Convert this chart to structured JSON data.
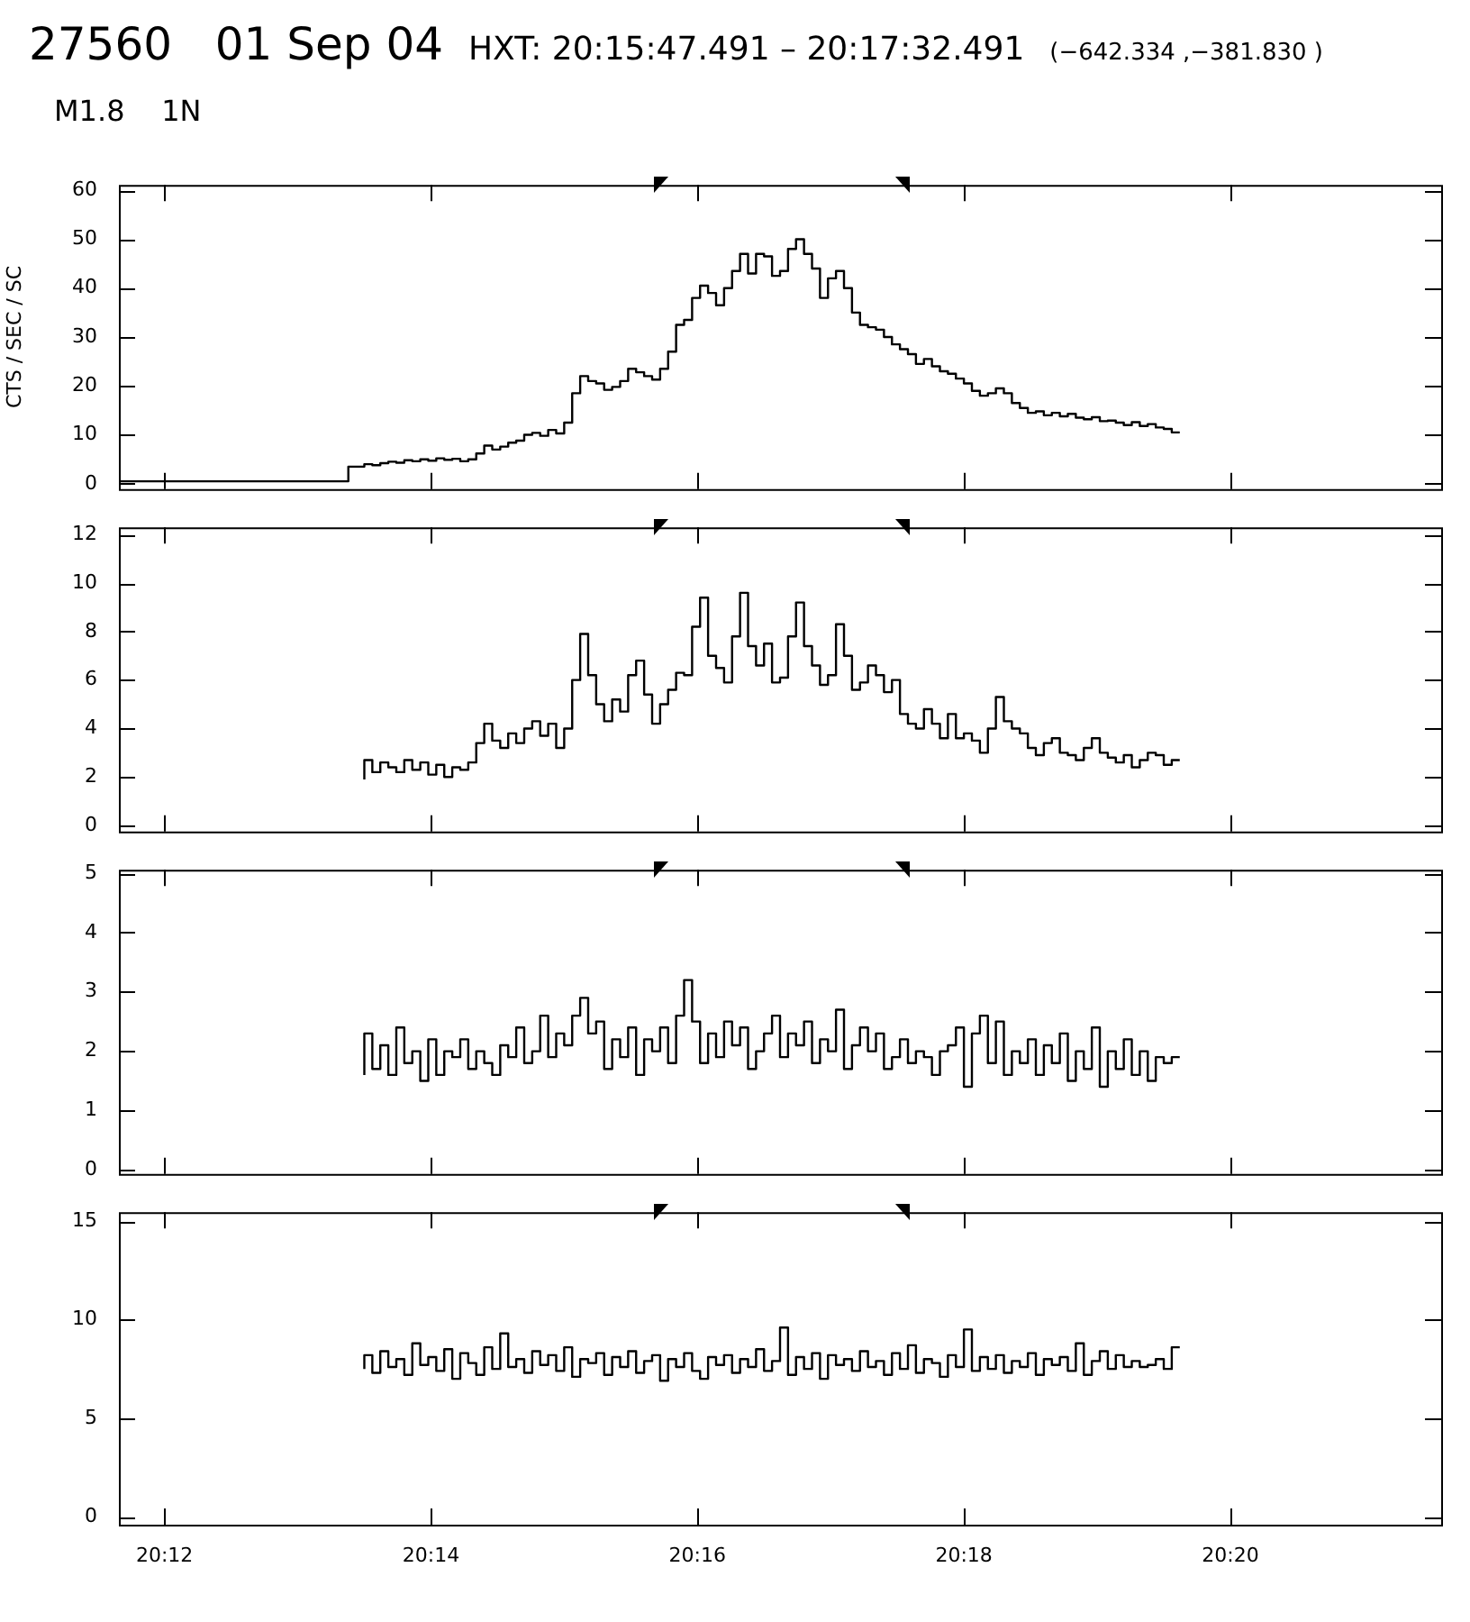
{
  "chart_data": [
    {
      "type": "step",
      "title": "27560   01 Sep 04",
      "subtitle": "M1.8    1N",
      "annotations": [
        "HXT: 20:15:47.491 – 20:17:32.491",
        "(−642.334 ,−381.830 )"
      ],
      "ylabel": "CTS / SEC / SC",
      "tick_labels": "y",
      "xlim": [
        20.1943,
        20.3597
      ],
      "xticks": [
        {
          "value": 20.2,
          "label": null
        },
        {
          "value": 20.233333,
          "label": null
        },
        {
          "value": 20.266667,
          "label": null
        },
        {
          "value": 20.3,
          "label": null
        },
        {
          "value": 20.333333,
          "label": null
        }
      ],
      "ylim": [
        -1.1,
        61.1
      ],
      "yticks": [
        0,
        10,
        20,
        30,
        40,
        50,
        60
      ],
      "series": [
        {
          "color": "#000000",
          "x": [
            20.1943,
            20.223,
            20.225,
            20.226,
            20.227,
            20.228,
            20.229,
            20.23,
            20.231,
            20.232,
            20.233,
            20.234,
            20.235,
            20.236,
            20.237,
            20.238,
            20.239,
            20.24,
            20.241,
            20.242,
            20.243,
            20.244,
            20.245,
            20.246,
            20.247,
            20.248,
            20.249,
            20.25,
            20.251,
            20.252,
            20.253,
            20.254,
            20.255,
            20.256,
            20.257,
            20.258,
            20.259,
            20.26,
            20.261,
            20.262,
            20.263,
            20.264,
            20.265,
            20.266,
            20.267,
            20.268,
            20.269,
            20.27,
            20.271,
            20.272,
            20.273,
            20.274,
            20.275,
            20.276,
            20.277,
            20.278,
            20.279,
            20.28,
            20.281,
            20.282,
            20.283,
            20.284,
            20.285,
            20.286,
            20.287,
            20.288,
            20.289,
            20.29,
            20.291,
            20.292,
            20.293,
            20.294,
            20.295,
            20.296,
            20.297,
            20.298,
            20.299,
            20.3,
            20.301,
            20.302,
            20.303,
            20.304,
            20.305,
            20.306,
            20.307,
            20.308,
            20.309,
            20.31,
            20.311,
            20.312,
            20.313,
            20.314,
            20.315,
            20.316,
            20.317,
            20.318,
            20.319,
            20.32,
            20.321,
            20.322,
            20.323,
            20.324,
            20.325,
            20.326,
            20.327
          ],
          "values": [
            0.5,
            0.5,
            3.5,
            4.0,
            3.8,
            4.2,
            4.5,
            4.3,
            4.8,
            4.6,
            5.0,
            4.7,
            5.2,
            4.9,
            5.1,
            4.6,
            5.0,
            6.2,
            7.8,
            7.0,
            7.6,
            8.4,
            8.8,
            10.0,
            10.4,
            9.8,
            11.0,
            10.3,
            12.5,
            18.5,
            22.0,
            21.0,
            20.5,
            19.2,
            19.8,
            21.0,
            23.5,
            22.8,
            22.0,
            21.3,
            23.5,
            27.0,
            32.5,
            33.5,
            38.0,
            40.5,
            39.0,
            36.5,
            40.0,
            43.5,
            47.0,
            43.0,
            47.0,
            46.5,
            42.5,
            43.5,
            48.0,
            50.0,
            47.0,
            44.0,
            38.0,
            42.0,
            43.5,
            40.0,
            35.0,
            32.5,
            32.0,
            31.5,
            30.0,
            28.5,
            27.5,
            26.5,
            24.5,
            25.5,
            24.0,
            23.0,
            22.5,
            21.5,
            20.5,
            19.0,
            18.0,
            18.5,
            19.5,
            18.5,
            16.5,
            15.5,
            14.5,
            14.8,
            14.0,
            14.5,
            13.8,
            14.3,
            13.5,
            13.2,
            13.6,
            12.8,
            12.9,
            12.5,
            12.0,
            12.6,
            11.8,
            12.2,
            11.5,
            11.2,
            10.5
          ]
        }
      ]
    },
    {
      "type": "step",
      "tick_labels": "y",
      "xlim": [
        20.1943,
        20.3597
      ],
      "xticks": [
        {
          "value": 20.2,
          "label": null
        },
        {
          "value": 20.233333,
          "label": null
        },
        {
          "value": 20.266667,
          "label": null
        },
        {
          "value": 20.3,
          "label": null
        },
        {
          "value": 20.333333,
          "label": null
        }
      ],
      "ylim": [
        -0.25,
        12.3
      ],
      "yticks": [
        0,
        2,
        4,
        6,
        8,
        10,
        12
      ],
      "color": "#000000",
      "x": [
        20.225,
        20.226,
        20.227,
        20.228,
        20.229,
        20.23,
        20.231,
        20.232,
        20.233,
        20.234,
        20.235,
        20.236,
        20.237,
        20.238,
        20.239,
        20.24,
        20.241,
        20.242,
        20.243,
        20.244,
        20.245,
        20.246,
        20.247,
        20.248,
        20.249,
        20.25,
        20.251,
        20.252,
        20.253,
        20.254,
        20.255,
        20.256,
        20.257,
        20.258,
        20.259,
        20.26,
        20.261,
        20.262,
        20.263,
        20.264,
        20.265,
        20.266,
        20.267,
        20.268,
        20.269,
        20.27,
        20.271,
        20.272,
        20.273,
        20.274,
        20.275,
        20.276,
        20.277,
        20.278,
        20.279,
        20.28,
        20.281,
        20.282,
        20.283,
        20.284,
        20.285,
        20.286,
        20.287,
        20.288,
        20.289,
        20.29,
        20.291,
        20.292,
        20.293,
        20.294,
        20.295,
        20.296,
        20.297,
        20.298,
        20.299,
        20.3,
        20.301,
        20.302,
        20.303,
        20.304,
        20.305,
        20.306,
        20.307,
        20.308,
        20.309,
        20.31,
        20.311,
        20.312,
        20.313,
        20.314,
        20.315,
        20.316,
        20.317,
        20.318,
        20.319,
        20.32,
        20.321,
        20.322,
        20.323,
        20.324,
        20.325,
        20.326,
        20.327
      ],
      "values": [
        1.9,
        2.7,
        2.2,
        2.6,
        2.4,
        2.2,
        2.7,
        2.3,
        2.6,
        2.1,
        2.5,
        2.0,
        2.4,
        2.3,
        2.6,
        3.4,
        4.2,
        3.5,
        3.2,
        3.8,
        3.4,
        4.0,
        4.3,
        3.7,
        4.2,
        3.2,
        4.0,
        6.0,
        7.9,
        6.2,
        5.0,
        4.3,
        5.2,
        4.7,
        6.2,
        6.8,
        5.4,
        4.2,
        5.0,
        5.6,
        6.3,
        6.2,
        8.2,
        9.4,
        7.0,
        6.5,
        5.9,
        7.8,
        9.6,
        7.4,
        6.6,
        7.5,
        5.9,
        6.1,
        7.8,
        9.2,
        7.4,
        6.6,
        5.8,
        6.2,
        8.3,
        7.0,
        5.6,
        5.9,
        6.6,
        6.2,
        5.5,
        6.0,
        4.6,
        4.2,
        4.0,
        4.8,
        4.2,
        3.6,
        4.6,
        3.6,
        3.8,
        3.5,
        3.0,
        4.0,
        5.3,
        4.3,
        4.0,
        3.8,
        3.2,
        2.9,
        3.4,
        3.6,
        3.0,
        2.9,
        2.7,
        3.2,
        3.6,
        3.0,
        2.8,
        2.6,
        2.9,
        2.4,
        2.7,
        3.0,
        2.9,
        2.5,
        2.7
      ]
    },
    {
      "type": "step",
      "tick_labels": "y",
      "xlim": [
        20.1943,
        20.3597
      ],
      "xticks": [
        {
          "value": 20.2,
          "label": null
        },
        {
          "value": 20.233333,
          "label": null
        },
        {
          "value": 20.266667,
          "label": null
        },
        {
          "value": 20.3,
          "label": null
        },
        {
          "value": 20.333333,
          "label": null
        }
      ],
      "ylim": [
        -0.07,
        5.06
      ],
      "yticks": [
        0,
        1,
        2,
        3,
        4,
        5
      ],
      "color": "#000000",
      "x": [
        20.225,
        20.226,
        20.227,
        20.228,
        20.229,
        20.23,
        20.231,
        20.232,
        20.233,
        20.234,
        20.235,
        20.236,
        20.237,
        20.238,
        20.239,
        20.24,
        20.241,
        20.242,
        20.243,
        20.244,
        20.245,
        20.246,
        20.247,
        20.248,
        20.249,
        20.25,
        20.251,
        20.252,
        20.253,
        20.254,
        20.255,
        20.256,
        20.257,
        20.258,
        20.259,
        20.26,
        20.261,
        20.262,
        20.263,
        20.264,
        20.265,
        20.266,
        20.267,
        20.268,
        20.269,
        20.27,
        20.271,
        20.272,
        20.273,
        20.274,
        20.275,
        20.276,
        20.277,
        20.278,
        20.279,
        20.28,
        20.281,
        20.282,
        20.283,
        20.284,
        20.285,
        20.286,
        20.287,
        20.288,
        20.289,
        20.29,
        20.291,
        20.292,
        20.293,
        20.294,
        20.295,
        20.296,
        20.297,
        20.298,
        20.299,
        20.3,
        20.301,
        20.302,
        20.303,
        20.304,
        20.305,
        20.306,
        20.307,
        20.308,
        20.309,
        20.31,
        20.311,
        20.312,
        20.313,
        20.314,
        20.315,
        20.316,
        20.317,
        20.318,
        20.319,
        20.32,
        20.321,
        20.322,
        20.323,
        20.324,
        20.325,
        20.326,
        20.327
      ],
      "values": [
        1.6,
        2.3,
        1.7,
        2.1,
        1.6,
        2.4,
        1.8,
        2.0,
        1.5,
        2.2,
        1.6,
        2.0,
        1.9,
        2.2,
        1.7,
        2.0,
        1.8,
        1.6,
        2.1,
        1.9,
        2.4,
        1.8,
        2.0,
        2.6,
        1.9,
        2.3,
        2.1,
        2.6,
        2.9,
        2.3,
        2.5,
        1.7,
        2.2,
        1.9,
        2.4,
        1.6,
        2.2,
        2.0,
        2.4,
        1.8,
        2.6,
        3.2,
        2.5,
        1.8,
        2.3,
        1.9,
        2.5,
        2.1,
        2.4,
        1.7,
        2.0,
        2.3,
        2.6,
        1.9,
        2.3,
        2.1,
        2.5,
        1.8,
        2.2,
        2.0,
        2.7,
        1.7,
        2.1,
        2.4,
        2.0,
        2.3,
        1.7,
        1.9,
        2.2,
        1.8,
        2.0,
        1.9,
        1.6,
        2.0,
        2.1,
        2.4,
        1.4,
        2.3,
        2.6,
        1.8,
        2.5,
        1.6,
        2.0,
        1.8,
        2.2,
        1.6,
        2.1,
        1.8,
        2.3,
        1.5,
        2.0,
        1.7,
        2.4,
        1.4,
        2.0,
        1.7,
        2.2,
        1.6,
        2.0,
        1.5,
        1.9,
        1.8,
        1.9
      ]
    },
    {
      "type": "step",
      "xlim": [
        20.1943,
        20.3597
      ],
      "xticks": [
        {
          "value": 20.2,
          "label": "20:12"
        },
        {
          "value": 20.233333,
          "label": "20:14"
        },
        {
          "value": 20.266667,
          "label": "20:16"
        },
        {
          "value": 20.3,
          "label": "20:18"
        },
        {
          "value": 20.333333,
          "label": "20:20"
        }
      ],
      "ylim": [
        -0.4,
        15.45
      ],
      "yticks": [
        0,
        5,
        10,
        15
      ],
      "color": "#000000",
      "x": [
        20.225,
        20.226,
        20.227,
        20.228,
        20.229,
        20.23,
        20.231,
        20.232,
        20.233,
        20.234,
        20.235,
        20.236,
        20.237,
        20.238,
        20.239,
        20.24,
        20.241,
        20.242,
        20.243,
        20.244,
        20.245,
        20.246,
        20.247,
        20.248,
        20.249,
        20.25,
        20.251,
        20.252,
        20.253,
        20.254,
        20.255,
        20.256,
        20.257,
        20.258,
        20.259,
        20.26,
        20.261,
        20.262,
        20.263,
        20.264,
        20.265,
        20.266,
        20.267,
        20.268,
        20.269,
        20.27,
        20.271,
        20.272,
        20.273,
        20.274,
        20.275,
        20.276,
        20.277,
        20.278,
        20.279,
        20.28,
        20.281,
        20.282,
        20.283,
        20.284,
        20.285,
        20.286,
        20.287,
        20.288,
        20.289,
        20.29,
        20.291,
        20.292,
        20.293,
        20.294,
        20.295,
        20.296,
        20.297,
        20.298,
        20.299,
        20.3,
        20.301,
        20.302,
        20.303,
        20.304,
        20.305,
        20.306,
        20.307,
        20.308,
        20.309,
        20.31,
        20.311,
        20.312,
        20.313,
        20.314,
        20.315,
        20.316,
        20.317,
        20.318,
        20.319,
        20.32,
        20.321,
        20.322,
        20.323,
        20.324,
        20.325,
        20.326,
        20.327
      ],
      "values": [
        7.5,
        8.2,
        7.3,
        8.4,
        7.6,
        8.0,
        7.2,
        8.8,
        7.7,
        8.1,
        7.4,
        8.5,
        7.0,
        8.3,
        7.8,
        7.2,
        8.6,
        7.5,
        9.3,
        7.6,
        8.0,
        7.3,
        8.4,
        7.7,
        8.2,
        7.4,
        8.6,
        7.1,
        8.0,
        7.8,
        8.3,
        7.2,
        8.1,
        7.6,
        8.4,
        7.3,
        7.9,
        8.2,
        6.9,
        8.0,
        7.6,
        8.3,
        7.4,
        7.0,
        8.1,
        7.7,
        8.2,
        7.3,
        8.0,
        7.6,
        8.5,
        7.4,
        7.9,
        9.6,
        7.2,
        8.1,
        7.5,
        8.3,
        7.0,
        8.2,
        7.7,
        8.0,
        7.4,
        8.4,
        7.6,
        7.9,
        7.2,
        8.3,
        7.5,
        8.7,
        7.3,
        8.0,
        7.8,
        7.1,
        8.2,
        7.6,
        9.5,
        7.4,
        8.1,
        7.5,
        8.2,
        7.3,
        7.9,
        7.6,
        8.3,
        7.2,
        8.0,
        7.7,
        8.1,
        7.4,
        8.8,
        7.2,
        7.9,
        8.4,
        7.5,
        8.2,
        7.6,
        7.9,
        7.6,
        7.7,
        8.0,
        7.5,
        8.6
      ]
    }
  ]
}
